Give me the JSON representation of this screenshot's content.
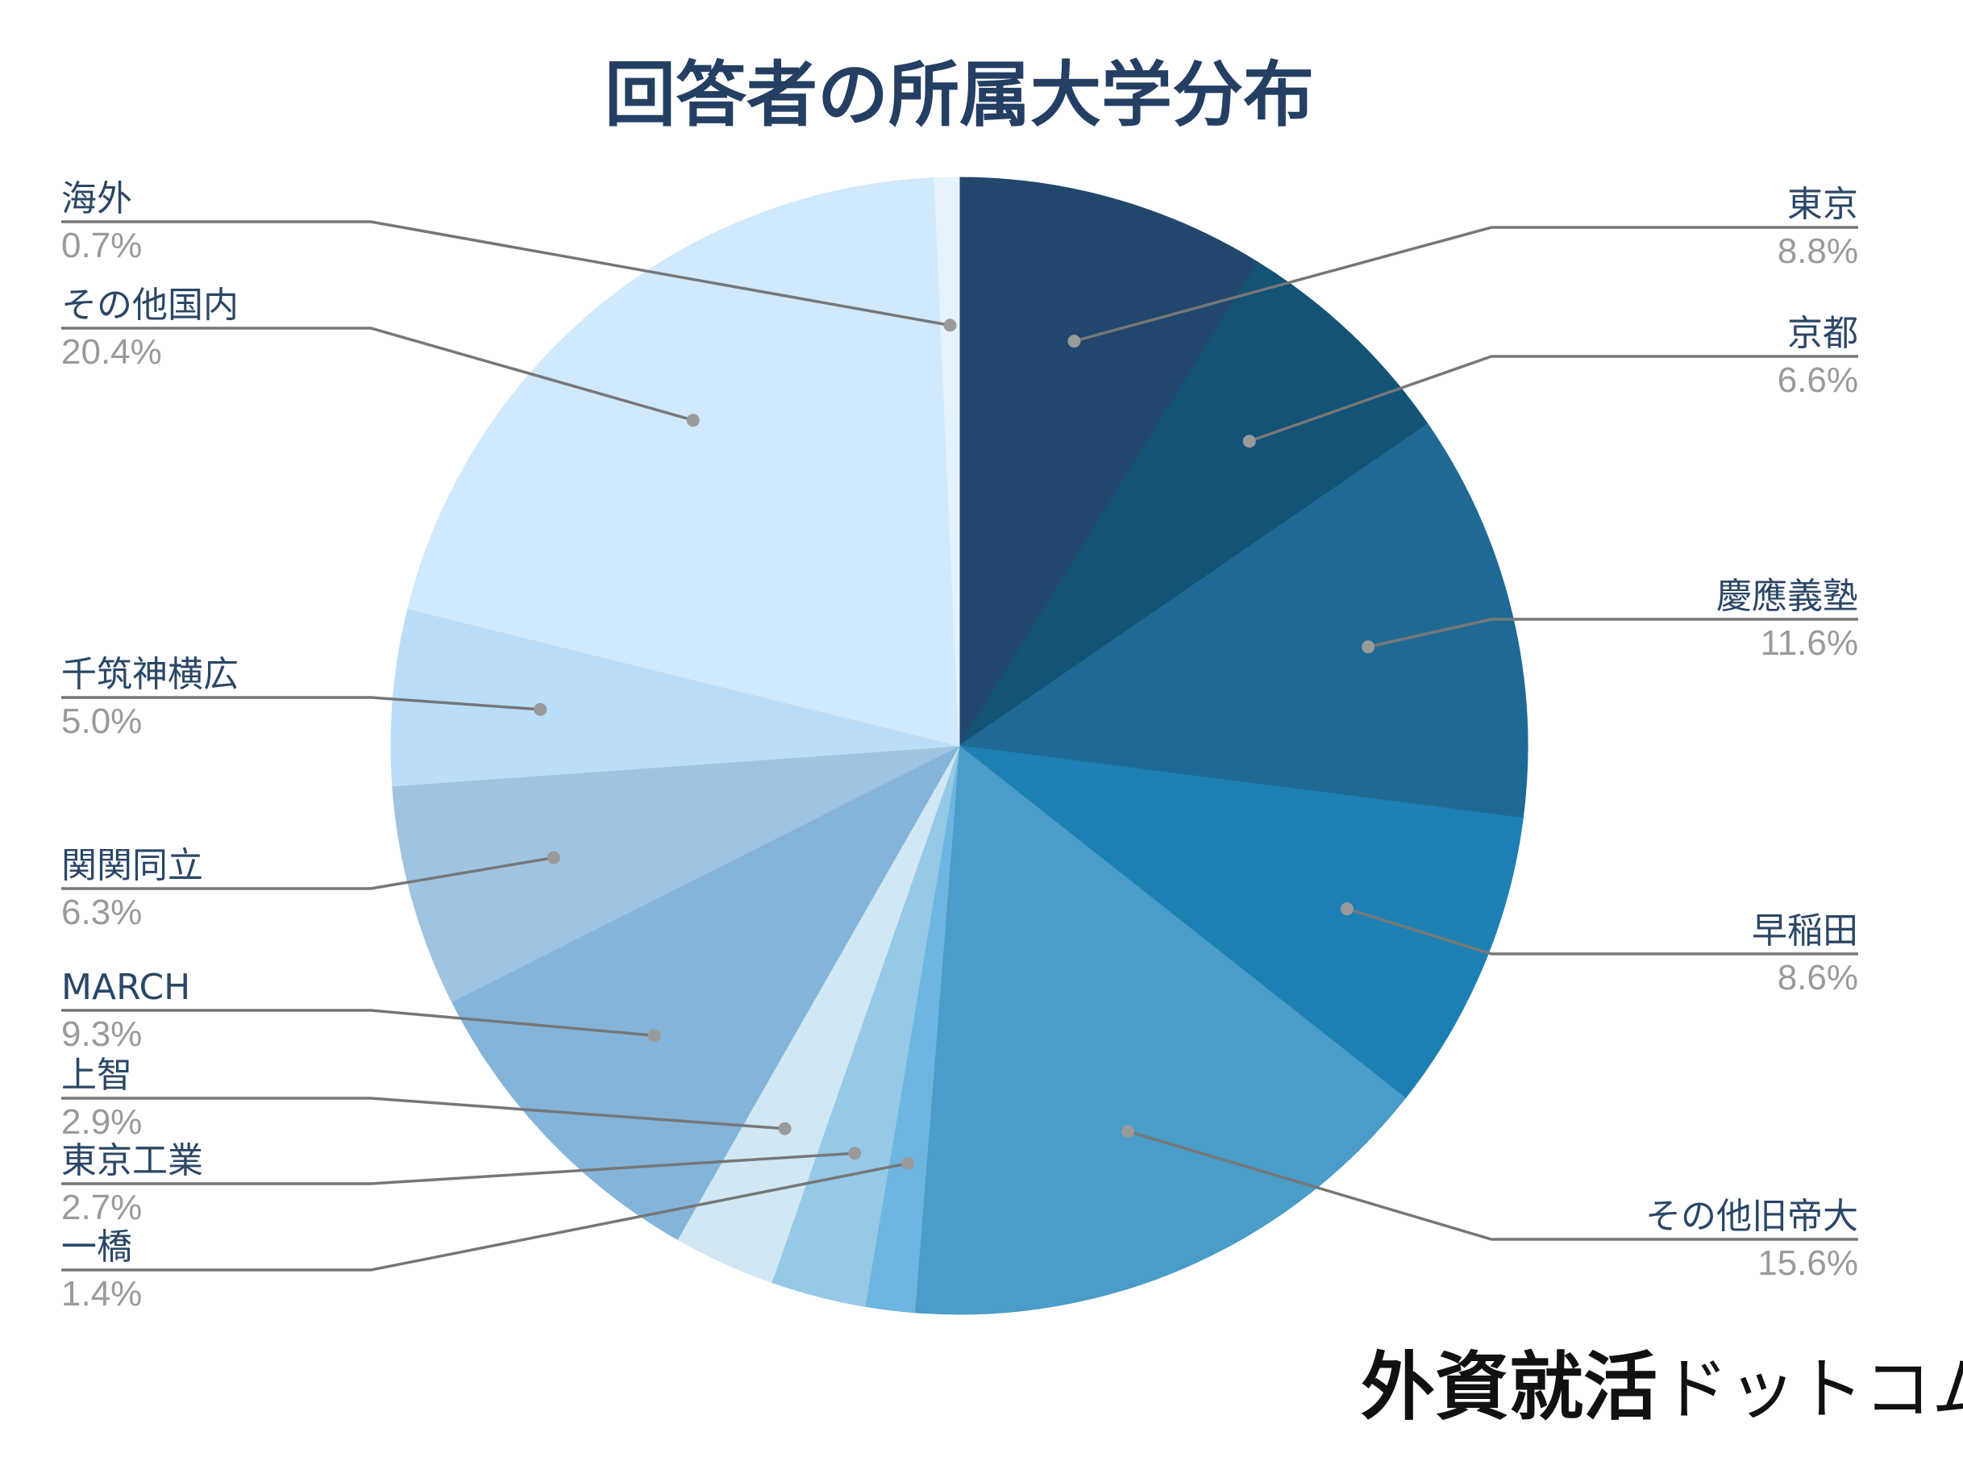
{
  "chart_data": {
    "type": "pie",
    "title": "回答者の所属大学分布",
    "unit": "%",
    "slices": [
      {
        "name": "東京",
        "value": 8.8,
        "label": "8.8%",
        "color": "#22476c",
        "side": "right"
      },
      {
        "name": "京都",
        "value": 6.6,
        "label": "6.6%",
        "color": "#135376",
        "side": "right"
      },
      {
        "name": "慶應義塾",
        "value": 11.6,
        "label": "11.6%",
        "color": "#1f6a94",
        "side": "right"
      },
      {
        "name": "早稲田",
        "value": 8.6,
        "label": "8.6%",
        "color": "#1d80b2",
        "side": "right"
      },
      {
        "name": "その他旧帝大",
        "value": 15.6,
        "label": "15.6%",
        "color": "#4a9cc9",
        "side": "right"
      },
      {
        "name": "一橋",
        "value": 1.4,
        "label": "1.4%",
        "color": "#6db6e0",
        "side": "left"
      },
      {
        "name": "東京工業",
        "value": 2.7,
        "label": "2.7%",
        "color": "#96c9e7",
        "side": "left"
      },
      {
        "name": "上智",
        "value": 2.9,
        "label": "2.9%",
        "color": "#d1e7f4",
        "side": "left"
      },
      {
        "name": "MARCH",
        "value": 9.3,
        "label": "9.3%",
        "color": "#84b4da",
        "side": "left"
      },
      {
        "name": "関関同立",
        "value": 6.3,
        "label": "6.3%",
        "color": "#9ec4e1",
        "side": "left"
      },
      {
        "name": "千筑神横広",
        "value": 5.0,
        "label": "5.0%",
        "color": "#bbdef8",
        "side": "left"
      },
      {
        "name": "その他国内",
        "value": 20.4,
        "label": "20.4%",
        "color": "#d0e9fc",
        "side": "left"
      },
      {
        "name": "海外",
        "value": 0.7,
        "label": "0.7%",
        "color": "#e6f2fb",
        "side": "left"
      }
    ]
  },
  "brand": {
    "kanji": "外資就活",
    "kana": "ドットコム"
  }
}
